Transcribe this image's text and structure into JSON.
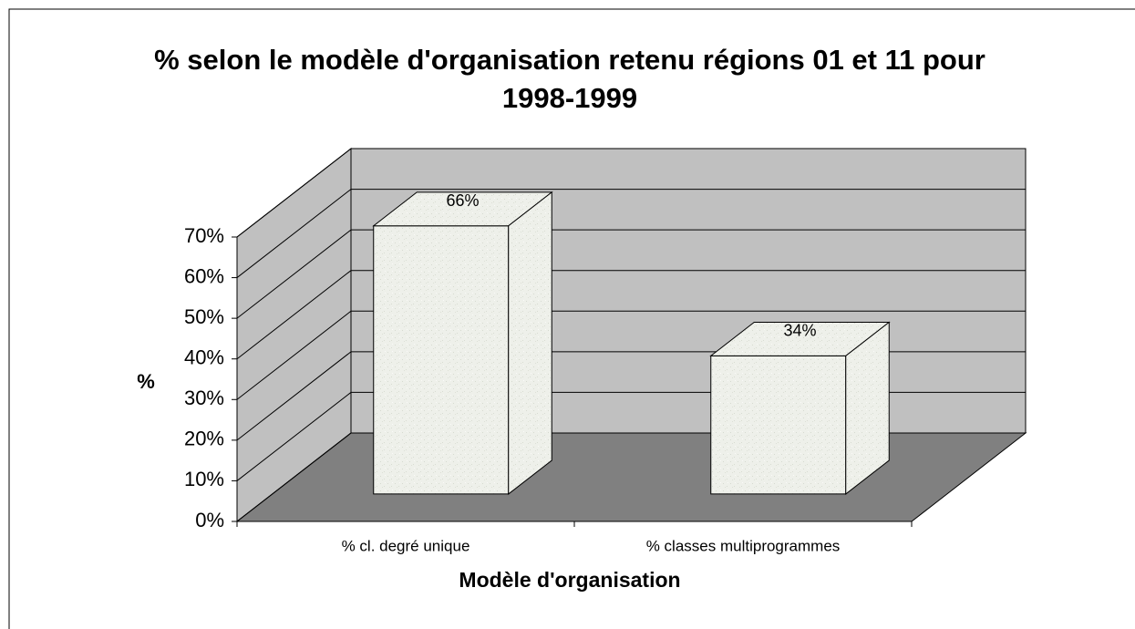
{
  "chart_data": {
    "type": "bar3d",
    "title": "% selon le modèle d'organisation retenu régions 01 et 11 pour 1998-1999",
    "x_label": "Modèle d'organisation",
    "y_label": "%",
    "categories": [
      "% cl. degré unique",
      "% classes multiprogrammes"
    ],
    "values": [
      66,
      34
    ],
    "value_labels": [
      "66%",
      "34%"
    ],
    "color": "#eef0ea",
    "ylim": [
      0,
      70
    ],
    "yticks": [
      {
        "value": 0,
        "label": "0%"
      },
      {
        "value": 10,
        "label": "10%"
      },
      {
        "value": 20,
        "label": "20%"
      },
      {
        "value": 30,
        "label": "30%"
      },
      {
        "value": 40,
        "label": "40%"
      },
      {
        "value": 50,
        "label": "50%"
      },
      {
        "value": 60,
        "label": "60%"
      },
      {
        "value": 70,
        "label": "70%"
      }
    ],
    "grid": true
  }
}
